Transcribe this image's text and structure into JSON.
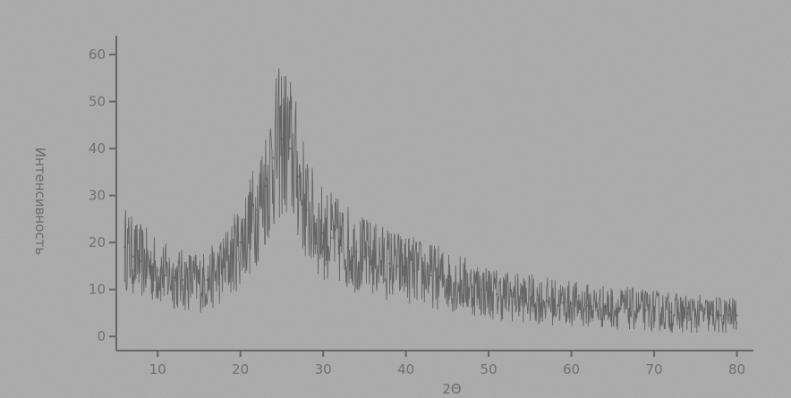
{
  "chart_data": {
    "type": "line",
    "title": "",
    "xlabel": "2Θ",
    "ylabel": "Интенсивность",
    "xlim": [
      5,
      82
    ],
    "ylim": [
      -3,
      64
    ],
    "x_ticks": [
      10,
      20,
      30,
      40,
      50,
      60,
      70,
      80
    ],
    "y_ticks": [
      0,
      10,
      20,
      30,
      40,
      50,
      60
    ],
    "grid": false,
    "colors": {
      "background": "#a9a9a9",
      "line": "#5a5a5a",
      "axis": "#666666"
    },
    "series": [
      {
        "x": [
          6,
          7,
          8,
          9,
          10,
          11,
          12,
          13,
          14,
          15,
          16,
          17,
          18,
          19,
          20,
          21,
          22,
          23,
          24,
          25,
          26,
          27,
          28,
          29,
          30,
          31,
          32,
          33,
          34,
          35,
          36,
          37,
          38,
          39,
          40,
          41,
          42,
          43,
          44,
          45,
          46,
          47,
          48,
          49,
          50,
          51,
          52,
          53,
          54,
          55,
          56,
          57,
          58,
          59,
          60,
          61,
          62,
          63,
          64,
          65,
          66,
          67,
          68,
          69,
          70,
          71,
          72,
          73,
          74,
          75,
          76,
          77,
          78,
          79,
          80
        ],
        "y": [
          19,
          17,
          16,
          15,
          14,
          13,
          12.5,
          12,
          12,
          11.5,
          12,
          13,
          15,
          17,
          20,
          23,
          27,
          32,
          38,
          42,
          40,
          34,
          27,
          24,
          22,
          21,
          20,
          19,
          18,
          17,
          16.5,
          16,
          15.5,
          15,
          14.5,
          14,
          13.5,
          13,
          12.5,
          12,
          11.5,
          11,
          10.5,
          10,
          9.5,
          9,
          8.8,
          8.5,
          8.2,
          8,
          7.8,
          7.6,
          7.4,
          7.2,
          7,
          6.8,
          6.6,
          6.5,
          6.3,
          6.2,
          6,
          5.9,
          5.8,
          5.6,
          5.5,
          5.4,
          5.2,
          5,
          4.9,
          4.8,
          4.7,
          4.6,
          4.5,
          4.5,
          4.5
        ]
      }
    ]
  }
}
